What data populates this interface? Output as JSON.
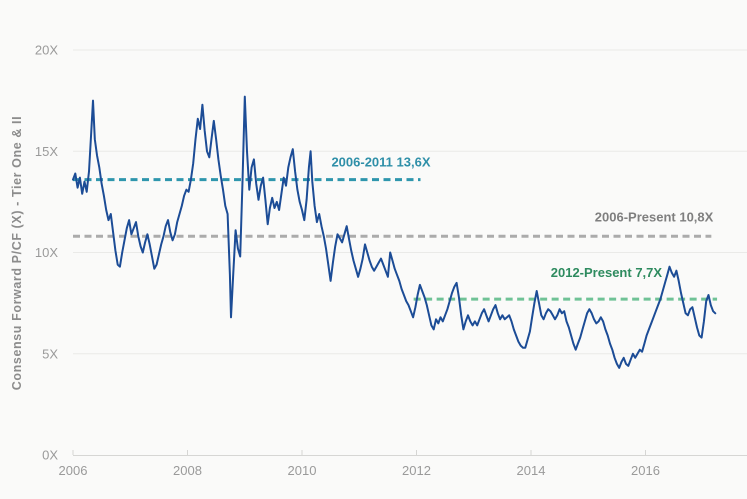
{
  "chart_data": {
    "type": "line",
    "title": "",
    "xlabel": "",
    "ylabel": "Consensu Forward P/CF (X) - Tier One & II",
    "ylim": [
      0,
      20
    ],
    "x_range": [
      2006,
      2017.3
    ],
    "grid": "horizontal",
    "legend_position": "none",
    "y_ticks": [
      {
        "value": 0,
        "label": "0X"
      },
      {
        "value": 5,
        "label": "5X"
      },
      {
        "value": 10,
        "label": "10X"
      },
      {
        "value": 15,
        "label": "15X"
      },
      {
        "value": 20,
        "label": "20X"
      }
    ],
    "x_ticks": [
      {
        "value": 2006,
        "label": "2006"
      },
      {
        "value": 2008,
        "label": "2008"
      },
      {
        "value": 2010,
        "label": "2010"
      },
      {
        "value": 2012,
        "label": "2012"
      },
      {
        "value": 2014,
        "label": "2014"
      },
      {
        "value": 2016,
        "label": "2016"
      }
    ],
    "reference_lines": [
      {
        "label": "2006-2011 13,6X",
        "value": 13.6,
        "x_start": 2006.0,
        "x_end": 2012.07,
        "line_color": "#2e96ad",
        "label_color": "#2e8fa8"
      },
      {
        "label": "2006-Present 10,8X",
        "value": 10.8,
        "x_start": 2006.0,
        "x_end": 2017.15,
        "line_color": "#ababab",
        "label_color": "#7f7f7f"
      },
      {
        "label": "2012-Present 7,7X",
        "value": 7.7,
        "x_start": 2011.95,
        "x_end": 2017.25,
        "line_color": "#6fc296",
        "label_color": "#2e8b5f"
      }
    ],
    "series": [
      {
        "name": "Consensus Forward P/CF (X) - Tier One & II",
        "color": "#1c4c96",
        "points": [
          [
            2006.0,
            13.6
          ],
          [
            2006.04,
            13.9
          ],
          [
            2006.08,
            13.2
          ],
          [
            2006.12,
            13.7
          ],
          [
            2006.16,
            12.9
          ],
          [
            2006.2,
            13.5
          ],
          [
            2006.24,
            13.0
          ],
          [
            2006.28,
            14.0
          ],
          [
            2006.32,
            16.0
          ],
          [
            2006.35,
            17.5
          ],
          [
            2006.38,
            15.6
          ],
          [
            2006.42,
            14.8
          ],
          [
            2006.46,
            14.2
          ],
          [
            2006.5,
            13.4
          ],
          [
            2006.54,
            12.8
          ],
          [
            2006.58,
            12.1
          ],
          [
            2006.62,
            11.6
          ],
          [
            2006.66,
            11.9
          ],
          [
            2006.7,
            11.0
          ],
          [
            2006.74,
            10.1
          ],
          [
            2006.78,
            9.4
          ],
          [
            2006.82,
            9.3
          ],
          [
            2006.86,
            10.0
          ],
          [
            2006.9,
            10.6
          ],
          [
            2006.94,
            11.2
          ],
          [
            2006.98,
            11.6
          ],
          [
            2007.02,
            10.9
          ],
          [
            2007.06,
            11.2
          ],
          [
            2007.1,
            11.5
          ],
          [
            2007.14,
            10.8
          ],
          [
            2007.18,
            10.3
          ],
          [
            2007.22,
            10.0
          ],
          [
            2007.26,
            10.5
          ],
          [
            2007.3,
            10.9
          ],
          [
            2007.34,
            10.4
          ],
          [
            2007.38,
            9.8
          ],
          [
            2007.42,
            9.2
          ],
          [
            2007.46,
            9.4
          ],
          [
            2007.5,
            9.9
          ],
          [
            2007.54,
            10.4
          ],
          [
            2007.58,
            10.8
          ],
          [
            2007.62,
            11.3
          ],
          [
            2007.66,
            11.6
          ],
          [
            2007.7,
            11.0
          ],
          [
            2007.74,
            10.6
          ],
          [
            2007.78,
            10.9
          ],
          [
            2007.82,
            11.5
          ],
          [
            2007.86,
            11.9
          ],
          [
            2007.9,
            12.3
          ],
          [
            2007.94,
            12.8
          ],
          [
            2007.98,
            13.1
          ],
          [
            2008.02,
            13.0
          ],
          [
            2008.06,
            13.6
          ],
          [
            2008.1,
            14.4
          ],
          [
            2008.14,
            15.6
          ],
          [
            2008.18,
            16.6
          ],
          [
            2008.22,
            16.1
          ],
          [
            2008.26,
            17.3
          ],
          [
            2008.3,
            16.0
          ],
          [
            2008.34,
            15.0
          ],
          [
            2008.38,
            14.7
          ],
          [
            2008.42,
            15.6
          ],
          [
            2008.46,
            16.5
          ],
          [
            2008.5,
            15.6
          ],
          [
            2008.54,
            14.6
          ],
          [
            2008.58,
            13.8
          ],
          [
            2008.62,
            13.1
          ],
          [
            2008.66,
            12.3
          ],
          [
            2008.7,
            11.9
          ],
          [
            2008.74,
            8.9
          ],
          [
            2008.76,
            6.8
          ],
          [
            2008.8,
            9.0
          ],
          [
            2008.84,
            11.1
          ],
          [
            2008.88,
            10.2
          ],
          [
            2008.92,
            9.8
          ],
          [
            2008.96,
            13.5
          ],
          [
            2009.0,
            17.7
          ],
          [
            2009.04,
            15.0
          ],
          [
            2009.08,
            13.1
          ],
          [
            2009.12,
            14.2
          ],
          [
            2009.16,
            14.6
          ],
          [
            2009.2,
            13.4
          ],
          [
            2009.24,
            12.6
          ],
          [
            2009.28,
            13.3
          ],
          [
            2009.32,
            13.7
          ],
          [
            2009.36,
            12.6
          ],
          [
            2009.4,
            11.4
          ],
          [
            2009.44,
            12.2
          ],
          [
            2009.48,
            12.7
          ],
          [
            2009.52,
            12.2
          ],
          [
            2009.56,
            12.5
          ],
          [
            2009.6,
            12.1
          ],
          [
            2009.64,
            12.9
          ],
          [
            2009.68,
            13.7
          ],
          [
            2009.72,
            13.3
          ],
          [
            2009.76,
            14.2
          ],
          [
            2009.8,
            14.7
          ],
          [
            2009.84,
            15.1
          ],
          [
            2009.88,
            14.0
          ],
          [
            2009.92,
            13.1
          ],
          [
            2009.96,
            12.5
          ],
          [
            2010.0,
            12.1
          ],
          [
            2010.04,
            11.6
          ],
          [
            2010.08,
            12.6
          ],
          [
            2010.12,
            14.2
          ],
          [
            2010.15,
            15.0
          ],
          [
            2010.18,
            13.5
          ],
          [
            2010.22,
            12.3
          ],
          [
            2010.26,
            11.5
          ],
          [
            2010.3,
            11.9
          ],
          [
            2010.34,
            11.3
          ],
          [
            2010.38,
            10.8
          ],
          [
            2010.42,
            10.2
          ],
          [
            2010.46,
            9.4
          ],
          [
            2010.5,
            8.6
          ],
          [
            2010.54,
            9.5
          ],
          [
            2010.58,
            10.3
          ],
          [
            2010.62,
            10.9
          ],
          [
            2010.66,
            10.7
          ],
          [
            2010.7,
            10.5
          ],
          [
            2010.74,
            10.9
          ],
          [
            2010.78,
            11.3
          ],
          [
            2010.82,
            10.7
          ],
          [
            2010.86,
            10.1
          ],
          [
            2010.9,
            9.6
          ],
          [
            2010.94,
            9.2
          ],
          [
            2010.98,
            8.8
          ],
          [
            2011.02,
            9.2
          ],
          [
            2011.06,
            9.7
          ],
          [
            2011.1,
            10.4
          ],
          [
            2011.14,
            10.0
          ],
          [
            2011.18,
            9.6
          ],
          [
            2011.22,
            9.3
          ],
          [
            2011.26,
            9.1
          ],
          [
            2011.3,
            9.3
          ],
          [
            2011.34,
            9.5
          ],
          [
            2011.38,
            9.7
          ],
          [
            2011.42,
            9.4
          ],
          [
            2011.46,
            9.1
          ],
          [
            2011.5,
            8.8
          ],
          [
            2011.54,
            10.0
          ],
          [
            2011.58,
            9.6
          ],
          [
            2011.62,
            9.2
          ],
          [
            2011.66,
            8.9
          ],
          [
            2011.7,
            8.6
          ],
          [
            2011.74,
            8.2
          ],
          [
            2011.78,
            7.9
          ],
          [
            2011.82,
            7.6
          ],
          [
            2011.86,
            7.4
          ],
          [
            2011.9,
            7.1
          ],
          [
            2011.94,
            6.8
          ],
          [
            2011.98,
            7.3
          ],
          [
            2012.02,
            7.9
          ],
          [
            2012.06,
            8.4
          ],
          [
            2012.1,
            8.1
          ],
          [
            2012.14,
            7.8
          ],
          [
            2012.18,
            7.4
          ],
          [
            2012.22,
            6.9
          ],
          [
            2012.26,
            6.4
          ],
          [
            2012.3,
            6.2
          ],
          [
            2012.34,
            6.7
          ],
          [
            2012.38,
            6.5
          ],
          [
            2012.42,
            6.8
          ],
          [
            2012.46,
            6.6
          ],
          [
            2012.5,
            6.9
          ],
          [
            2012.54,
            7.2
          ],
          [
            2012.58,
            7.6
          ],
          [
            2012.62,
            8.0
          ],
          [
            2012.66,
            8.3
          ],
          [
            2012.7,
            8.5
          ],
          [
            2012.74,
            7.8
          ],
          [
            2012.78,
            6.9
          ],
          [
            2012.82,
            6.2
          ],
          [
            2012.86,
            6.6
          ],
          [
            2012.9,
            6.9
          ],
          [
            2012.94,
            6.6
          ],
          [
            2012.98,
            6.4
          ],
          [
            2013.02,
            6.6
          ],
          [
            2013.06,
            6.4
          ],
          [
            2013.1,
            6.7
          ],
          [
            2013.14,
            7.0
          ],
          [
            2013.18,
            7.2
          ],
          [
            2013.22,
            6.9
          ],
          [
            2013.26,
            6.6
          ],
          [
            2013.3,
            6.9
          ],
          [
            2013.34,
            7.2
          ],
          [
            2013.38,
            7.4
          ],
          [
            2013.42,
            7.0
          ],
          [
            2013.46,
            6.7
          ],
          [
            2013.5,
            6.9
          ],
          [
            2013.54,
            6.7
          ],
          [
            2013.58,
            6.8
          ],
          [
            2013.62,
            6.9
          ],
          [
            2013.66,
            6.6
          ],
          [
            2013.7,
            6.2
          ],
          [
            2013.74,
            5.9
          ],
          [
            2013.78,
            5.6
          ],
          [
            2013.82,
            5.4
          ],
          [
            2013.86,
            5.3
          ],
          [
            2013.9,
            5.3
          ],
          [
            2013.94,
            5.7
          ],
          [
            2013.98,
            6.1
          ],
          [
            2014.02,
            6.8
          ],
          [
            2014.06,
            7.5
          ],
          [
            2014.1,
            8.1
          ],
          [
            2014.14,
            7.5
          ],
          [
            2014.18,
            6.9
          ],
          [
            2014.22,
            6.7
          ],
          [
            2014.26,
            7.0
          ],
          [
            2014.3,
            7.2
          ],
          [
            2014.34,
            7.1
          ],
          [
            2014.38,
            6.9
          ],
          [
            2014.42,
            6.7
          ],
          [
            2014.46,
            6.9
          ],
          [
            2014.5,
            7.2
          ],
          [
            2014.54,
            7.0
          ],
          [
            2014.58,
            7.1
          ],
          [
            2014.62,
            6.6
          ],
          [
            2014.66,
            6.3
          ],
          [
            2014.7,
            5.9
          ],
          [
            2014.74,
            5.5
          ],
          [
            2014.78,
            5.2
          ],
          [
            2014.82,
            5.5
          ],
          [
            2014.86,
            5.8
          ],
          [
            2014.9,
            6.2
          ],
          [
            2014.94,
            6.6
          ],
          [
            2014.98,
            7.0
          ],
          [
            2015.02,
            7.2
          ],
          [
            2015.06,
            7.0
          ],
          [
            2015.1,
            6.7
          ],
          [
            2015.14,
            6.5
          ],
          [
            2015.18,
            6.6
          ],
          [
            2015.22,
            6.8
          ],
          [
            2015.26,
            6.6
          ],
          [
            2015.3,
            6.2
          ],
          [
            2015.34,
            5.9
          ],
          [
            2015.38,
            5.5
          ],
          [
            2015.42,
            5.2
          ],
          [
            2015.46,
            4.8
          ],
          [
            2015.5,
            4.5
          ],
          [
            2015.54,
            4.3
          ],
          [
            2015.58,
            4.6
          ],
          [
            2015.62,
            4.8
          ],
          [
            2015.66,
            4.5
          ],
          [
            2015.7,
            4.4
          ],
          [
            2015.74,
            4.7
          ],
          [
            2015.78,
            5.0
          ],
          [
            2015.82,
            4.8
          ],
          [
            2015.86,
            5.0
          ],
          [
            2015.9,
            5.2
          ],
          [
            2015.94,
            5.1
          ],
          [
            2015.98,
            5.5
          ],
          [
            2016.02,
            5.9
          ],
          [
            2016.06,
            6.2
          ],
          [
            2016.1,
            6.5
          ],
          [
            2016.14,
            6.8
          ],
          [
            2016.18,
            7.1
          ],
          [
            2016.22,
            7.4
          ],
          [
            2016.26,
            7.7
          ],
          [
            2016.3,
            8.1
          ],
          [
            2016.34,
            8.5
          ],
          [
            2016.38,
            8.9
          ],
          [
            2016.42,
            9.3
          ],
          [
            2016.46,
            9.0
          ],
          [
            2016.5,
            8.8
          ],
          [
            2016.54,
            9.1
          ],
          [
            2016.58,
            8.6
          ],
          [
            2016.62,
            8.0
          ],
          [
            2016.66,
            7.5
          ],
          [
            2016.7,
            7.0
          ],
          [
            2016.74,
            6.9
          ],
          [
            2016.78,
            7.2
          ],
          [
            2016.82,
            7.3
          ],
          [
            2016.86,
            6.8
          ],
          [
            2016.9,
            6.3
          ],
          [
            2016.94,
            5.9
          ],
          [
            2016.98,
            5.8
          ],
          [
            2017.02,
            6.6
          ],
          [
            2017.06,
            7.6
          ],
          [
            2017.1,
            7.9
          ],
          [
            2017.14,
            7.4
          ],
          [
            2017.18,
            7.1
          ],
          [
            2017.22,
            7.0
          ]
        ]
      }
    ],
    "colors": {
      "background": "#fafaf9",
      "grid": "#eaeae8",
      "axis": "#d6d6d4",
      "tick_label": "#9a9a9a",
      "axis_title": "#8c8c8c",
      "series": "#1c4c96"
    }
  }
}
